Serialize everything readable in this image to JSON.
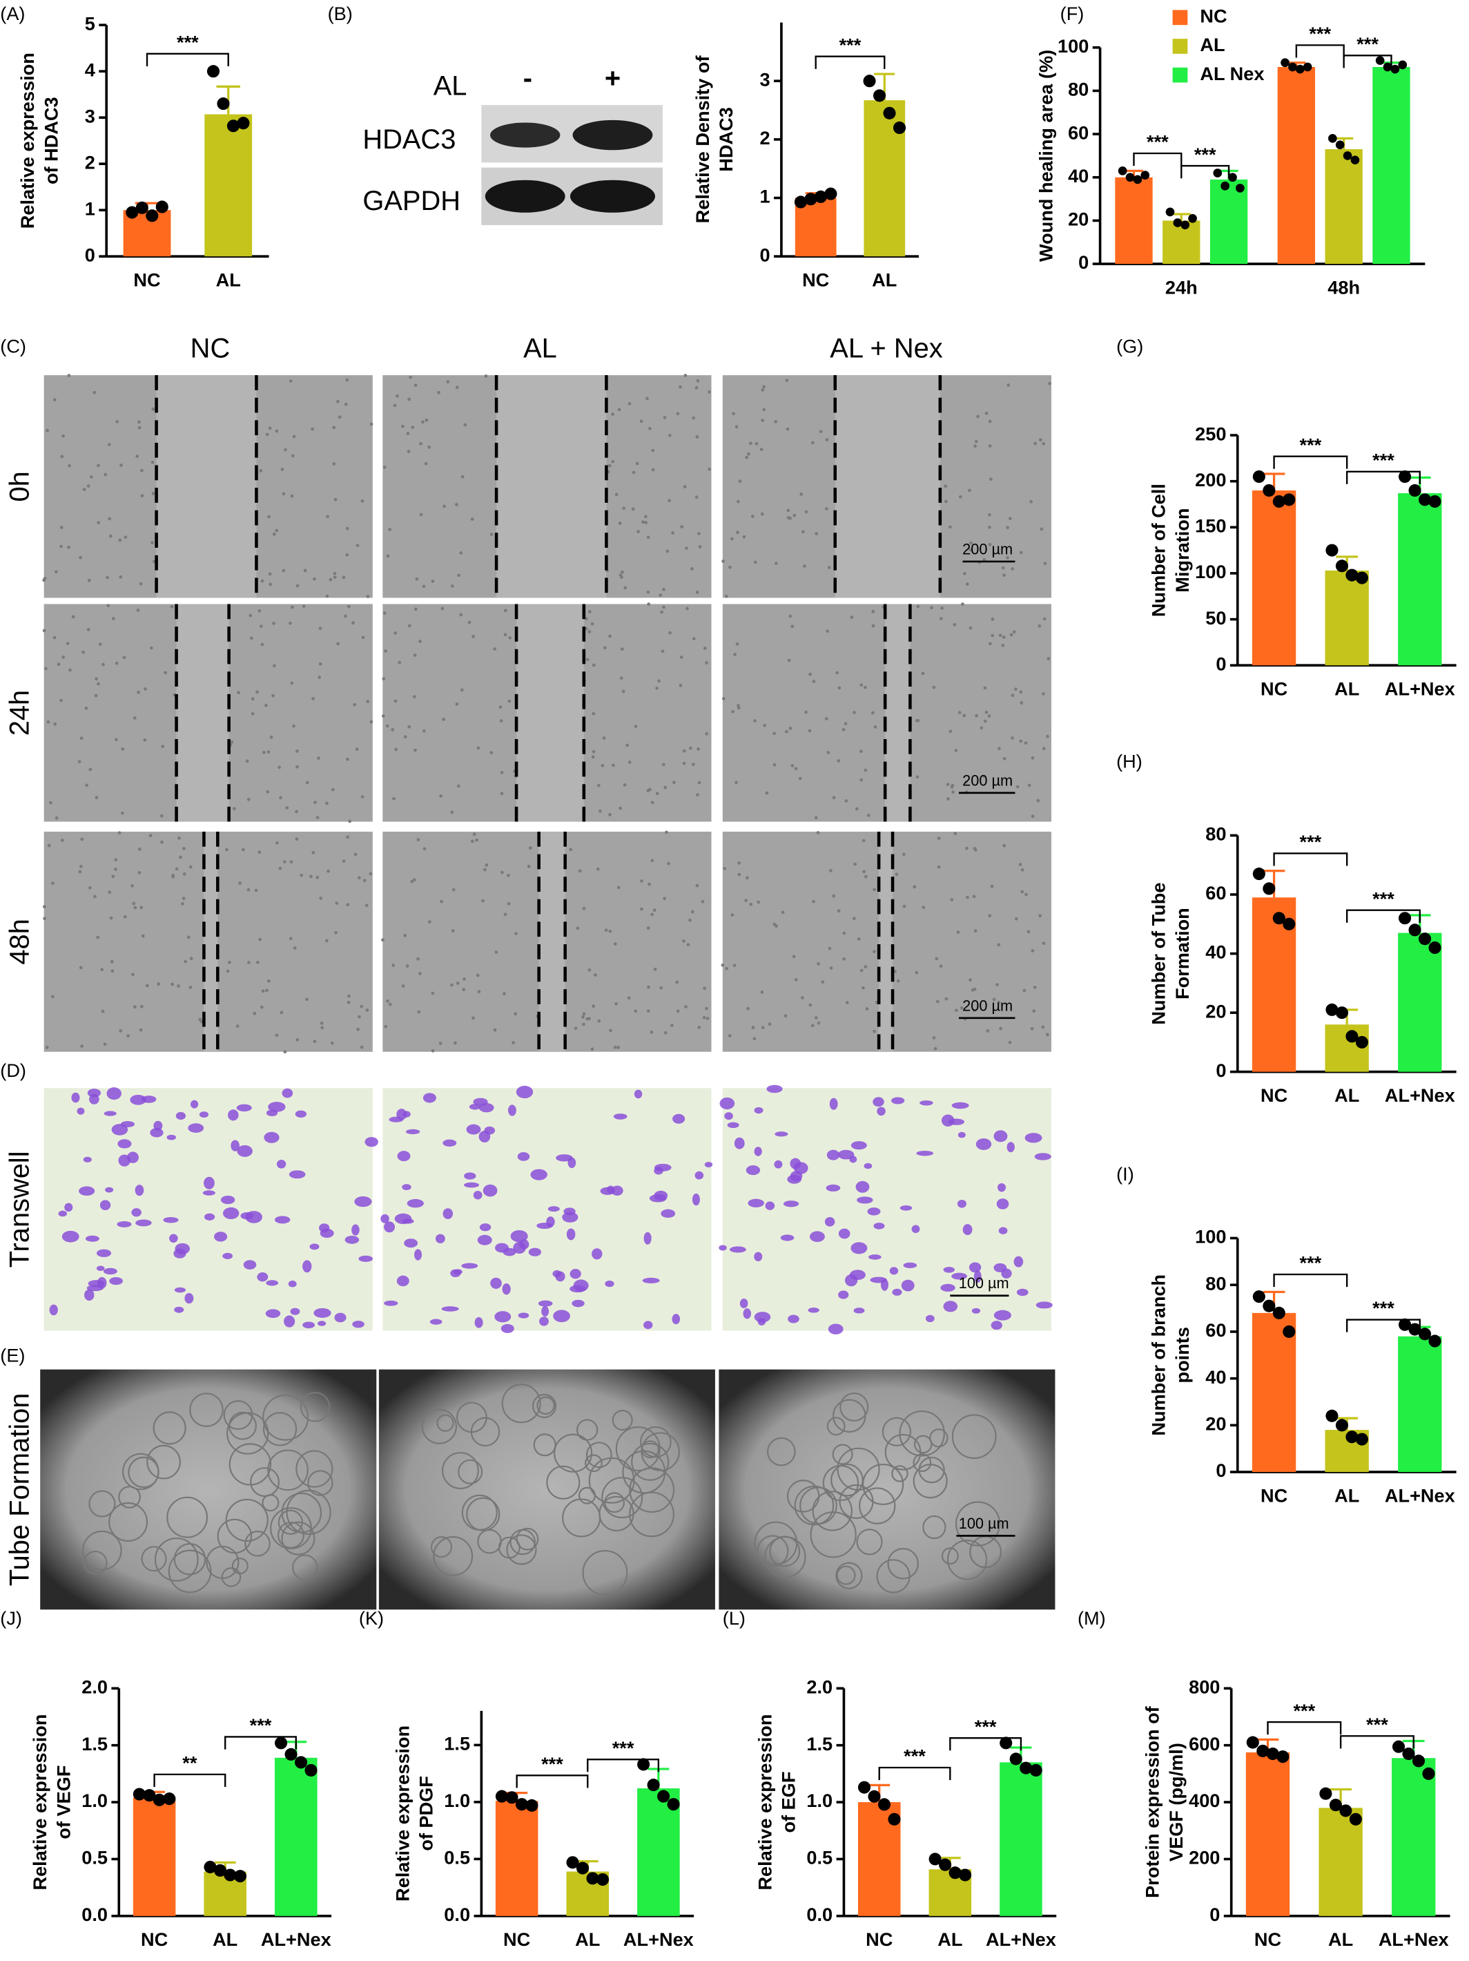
{
  "figure": {
    "panel_labels": [
      "(A)",
      "(B)",
      "(F)",
      "(C)",
      "(G)",
      "(H)",
      "(D)",
      "(I)",
      "(E)",
      "(J)",
      "(K)",
      "(L)",
      "(M)"
    ],
    "blot": {
      "treatment": "AL",
      "lanes": [
        "-",
        "+"
      ],
      "proteins": [
        "HDAC3",
        "GAPDH"
      ]
    },
    "micrographs": {
      "columns": [
        "NC",
        "AL",
        "AL + Nex"
      ],
      "rows": [
        "0h",
        "24h",
        "48h",
        "Transwell",
        "Tube Formation"
      ],
      "scale_bars": [
        "200 µm",
        "200 µm",
        "200 µm",
        "100 µm",
        "100 µm"
      ]
    }
  },
  "chart_data": [
    {
      "type": "bar",
      "ylabel": [
        "Relative expression",
        "of HDAC3"
      ],
      "categories": [
        "NC",
        "AL"
      ],
      "values": [
        1,
        3.07
      ],
      "errors": [
        0.15,
        0.6
      ],
      "points": [
        [
          0.95,
          1.05,
          0.88,
          1.07
        ],
        [
          4.0,
          3.3,
          2.82,
          2.88
        ]
      ],
      "colors": [
        "#ff6a1f",
        "#c4c41c"
      ],
      "ylim": [
        0,
        5
      ],
      "yticks": [
        0,
        1,
        2,
        3,
        4,
        5
      ],
      "annotations": [
        {
          "text": "***",
          "between": [
            0,
            1
          ]
        }
      ]
    },
    {
      "type": "bar",
      "ylabel": [
        "Relative Density of",
        "HDAC3"
      ],
      "categories": [
        "NC",
        "AL"
      ],
      "values": [
        1,
        2.67
      ],
      "errors": [
        0.08,
        0.45
      ],
      "points": [
        [
          0.93,
          0.98,
          1.02,
          1.07
        ],
        [
          3.0,
          2.75,
          2.45,
          2.2
        ]
      ],
      "colors": [
        "#ff6a1f",
        "#c4c41c"
      ],
      "ylim": [
        0,
        4
      ],
      "yticks": [
        0,
        1,
        2,
        3
      ],
      "annotations": [
        {
          "text": "***",
          "between": [
            0,
            1
          ]
        }
      ]
    },
    {
      "type": "bar",
      "ylabel": [
        "Wound healing area  (%)"
      ],
      "categories": [
        "24h",
        "48h"
      ],
      "legend": "top-left",
      "series": [
        {
          "name": "NC",
          "color": "#ff6a1f",
          "values": [
            40,
            91
          ],
          "errors": [
            3,
            2
          ],
          "points": [
            [
              43,
              40,
              39,
              41
            ],
            [
              93,
              91,
              90,
              91
            ]
          ]
        },
        {
          "name": "AL",
          "color": "#c4c41c",
          "values": [
            20,
            53
          ],
          "errors": [
            3,
            5
          ],
          "points": [
            [
              24,
              19,
              18,
              21
            ],
            [
              58,
              55,
              50,
              48
            ]
          ]
        },
        {
          "name": "AL Nex",
          "color": "#22ee44",
          "values": [
            39,
            91
          ],
          "errors": [
            4,
            2
          ],
          "points": [
            [
              42,
              36,
              40,
              35
            ],
            [
              94,
              91,
              90,
              92
            ]
          ]
        }
      ],
      "ylim": [
        0,
        100
      ],
      "yticks": [
        0,
        20,
        40,
        60,
        80,
        100
      ],
      "annotations": [
        {
          "text": "***",
          "category": 0,
          "between": [
            0,
            1
          ]
        },
        {
          "text": "***",
          "category": 0,
          "between": [
            1,
            2
          ]
        },
        {
          "text": "***",
          "category": 1,
          "between": [
            0,
            1
          ]
        },
        {
          "text": "***",
          "category": 1,
          "between": [
            1,
            2
          ]
        }
      ]
    },
    {
      "type": "bar",
      "ylabel": [
        "Number of Cell",
        "Migration"
      ],
      "categories": [
        "NC",
        "AL",
        "AL+Nex"
      ],
      "values": [
        190,
        103,
        187
      ],
      "errors": [
        18,
        15,
        17
      ],
      "points": [
        [
          205,
          190,
          178,
          180
        ],
        [
          125,
          108,
          98,
          95
        ],
        [
          205,
          190,
          180,
          178
        ]
      ],
      "colors": [
        "#ff6a1f",
        "#c4c41c",
        "#22ee44"
      ],
      "ylim": [
        0,
        250
      ],
      "yticks": [
        0,
        50,
        100,
        150,
        200,
        250
      ],
      "annotations": [
        {
          "text": "***",
          "between": [
            0,
            1
          ]
        },
        {
          "text": "***",
          "between": [
            1,
            2
          ]
        }
      ]
    },
    {
      "type": "bar",
      "ylabel": [
        "Number of Tube",
        "Formation"
      ],
      "categories": [
        "NC",
        "AL",
        "AL+Nex"
      ],
      "values": [
        59,
        16,
        47
      ],
      "errors": [
        9,
        5,
        6
      ],
      "points": [
        [
          67,
          62,
          52,
          50
        ],
        [
          21,
          20,
          12,
          10
        ],
        [
          52,
          48,
          45,
          42
        ]
      ],
      "colors": [
        "#ff6a1f",
        "#c4c41c",
        "#22ee44"
      ],
      "ylim": [
        0,
        80
      ],
      "yticks": [
        0,
        20,
        40,
        60,
        80
      ],
      "annotations": [
        {
          "text": "***",
          "between": [
            0,
            1
          ]
        },
        {
          "text": "***",
          "between": [
            1,
            2
          ]
        }
      ]
    },
    {
      "type": "bar",
      "ylabel": [
        "Number of branch",
        "points"
      ],
      "categories": [
        "NC",
        "AL",
        "AL+Nex"
      ],
      "values": [
        68,
        18,
        58
      ],
      "errors": [
        9,
        5,
        4
      ],
      "points": [
        [
          75,
          71,
          68,
          60
        ],
        [
          24,
          20,
          15,
          14
        ],
        [
          63,
          61,
          59,
          56
        ]
      ],
      "colors": [
        "#ff6a1f",
        "#c4c41c",
        "#22ee44"
      ],
      "ylim": [
        0,
        100
      ],
      "yticks": [
        0,
        20,
        40,
        60,
        80,
        100
      ],
      "annotations": [
        {
          "text": "***",
          "between": [
            0,
            1
          ]
        },
        {
          "text": "***",
          "between": [
            1,
            2
          ]
        }
      ]
    },
    {
      "type": "bar",
      "ylabel": [
        "Relative expression",
        "of VEGF"
      ],
      "categories": [
        "NC",
        "AL",
        "AL+Nex"
      ],
      "values": [
        1.04,
        0.39,
        1.39
      ],
      "errors": [
        0.05,
        0.08,
        0.14
      ],
      "points": [
        [
          1.07,
          1.06,
          1.02,
          1.03
        ],
        [
          0.43,
          0.4,
          0.36,
          0.35
        ],
        [
          1.52,
          1.42,
          1.35,
          1.28
        ]
      ],
      "colors": [
        "#ff6a1f",
        "#c4c41c",
        "#22ee44"
      ],
      "ylim": [
        0,
        2
      ],
      "yticks": [
        {
          "value": 0,
          "label": "0.0"
        },
        0.5,
        {
          "value": 1,
          "label": "1.0"
        },
        1.5,
        {
          "value": 2,
          "label": "2.0"
        }
      ],
      "annotations": [
        {
          "text": "**",
          "between": [
            0,
            1
          ]
        },
        {
          "text": "***",
          "between": [
            1,
            2
          ]
        }
      ]
    },
    {
      "type": "bar",
      "ylabel": [
        "Relative expression",
        "of PDGF"
      ],
      "categories": [
        "NC",
        "AL",
        "AL+Nex"
      ],
      "values": [
        1.01,
        0.39,
        1.12
      ],
      "errors": [
        0.07,
        0.09,
        0.17
      ],
      "points": [
        [
          1.05,
          1.04,
          0.98,
          0.97
        ],
        [
          0.47,
          0.42,
          0.33,
          0.32
        ],
        [
          1.33,
          1.15,
          1.05,
          0.98
        ]
      ],
      "colors": [
        "#ff6a1f",
        "#c4c41c",
        "#22ee44"
      ],
      "ylim": [
        0,
        1.8
      ],
      "yticks": [
        {
          "value": 0,
          "label": "0.0"
        },
        0.5,
        {
          "value": 1,
          "label": "1.0"
        },
        1.5
      ],
      "annotations": [
        {
          "text": "***",
          "between": [
            0,
            1
          ]
        },
        {
          "text": "***",
          "between": [
            1,
            2
          ]
        }
      ]
    },
    {
      "type": "bar",
      "ylabel": [
        "Relative expression",
        "of EGF"
      ],
      "categories": [
        "NC",
        "AL",
        "AL+Nex"
      ],
      "values": [
        1,
        0.41,
        1.35
      ],
      "errors": [
        0.15,
        0.1,
        0.13
      ],
      "points": [
        [
          1.13,
          1.05,
          0.98,
          0.85
        ],
        [
          0.5,
          0.45,
          0.38,
          0.36
        ],
        [
          1.52,
          1.38,
          1.3,
          1.28
        ]
      ],
      "colors": [
        "#ff6a1f",
        "#c4c41c",
        "#22ee44"
      ],
      "ylim": [
        0,
        2
      ],
      "yticks": [
        {
          "value": 0,
          "label": "0.0"
        },
        0.5,
        {
          "value": 1,
          "label": "1.0"
        },
        1.5,
        {
          "value": 2,
          "label": "2.0"
        }
      ],
      "annotations": [
        {
          "text": "***",
          "between": [
            0,
            1
          ]
        },
        {
          "text": "***",
          "between": [
            1,
            2
          ]
        }
      ]
    },
    {
      "type": "bar",
      "ylabel": [
        "Protein expression of",
        "VEGF (pg/ml)"
      ],
      "categories": [
        "NC",
        "AL",
        "AL+Nex"
      ],
      "values": [
        575,
        380,
        555
      ],
      "errors": [
        45,
        65,
        60
      ],
      "points": [
        [
          610,
          580,
          570,
          560
        ],
        [
          430,
          390,
          370,
          340
        ],
        [
          595,
          570,
          545,
          500
        ]
      ],
      "colors": [
        "#ff6a1f",
        "#c4c41c",
        "#22ee44"
      ],
      "ylim": [
        0,
        800
      ],
      "yticks": [
        0,
        200,
        400,
        600,
        800
      ],
      "annotations": [
        {
          "text": "***",
          "between": [
            0,
            1
          ]
        },
        {
          "text": "***",
          "between": [
            1,
            2
          ]
        }
      ]
    }
  ]
}
